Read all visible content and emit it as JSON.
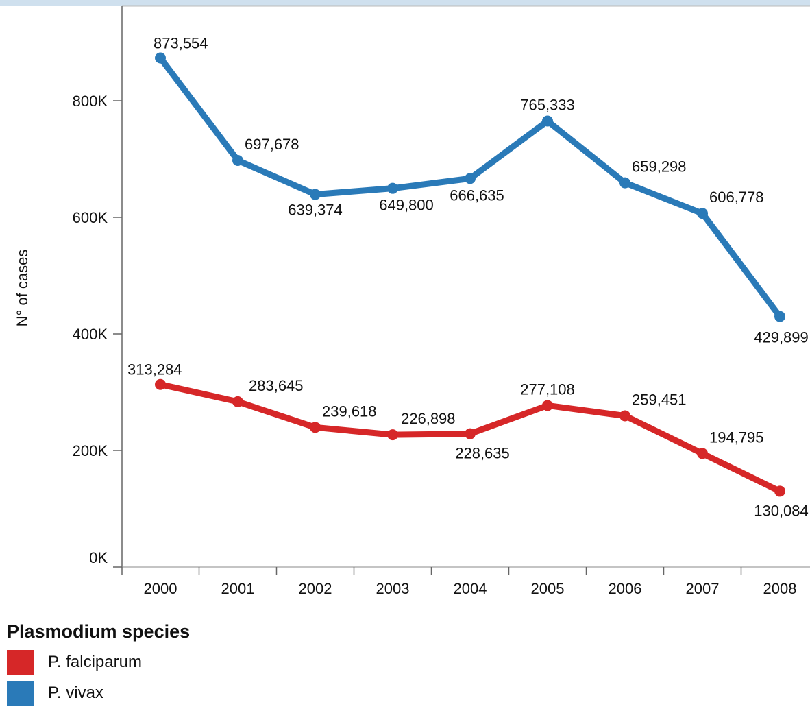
{
  "chart_data": {
    "type": "line",
    "ylabel": "N° of cases",
    "ylim": [
      0,
      950000
    ],
    "yticks": [
      0,
      200000,
      400000,
      600000,
      800000
    ],
    "ytick_labels": [
      "0K",
      "200K",
      "400K",
      "600K",
      "800K"
    ],
    "x": [
      "2000",
      "2001",
      "2002",
      "2003",
      "2004",
      "2005",
      "2006",
      "2007",
      "2008"
    ],
    "grid": false,
    "legend_placement": "bottom-left",
    "series": [
      {
        "name": "P. vivax",
        "color": "#2a7ab8",
        "values": [
          873554,
          697678,
          639374,
          649800,
          666635,
          765333,
          659298,
          606778,
          429899
        ],
        "labels": [
          "873,554",
          "697,678",
          "639,374",
          "649,800",
          "666,635",
          "765,333",
          "659,298",
          "606,778",
          "429,899"
        ]
      },
      {
        "name": "P. falciparum",
        "color": "#d62728",
        "values": [
          313284,
          283645,
          239618,
          226898,
          228635,
          277108,
          259451,
          194795,
          130084
        ],
        "labels": [
          "313,284",
          "283,645",
          "239,618",
          "226,898",
          "228,635",
          "277,108",
          "259,451",
          "194,795",
          "130,084"
        ]
      }
    ]
  },
  "legend": {
    "title": "Plasmodium species",
    "items": [
      {
        "label": "P. falciparum",
        "color": "#d62728"
      },
      {
        "label": "P. vivax",
        "color": "#2a7ab8"
      }
    ]
  }
}
